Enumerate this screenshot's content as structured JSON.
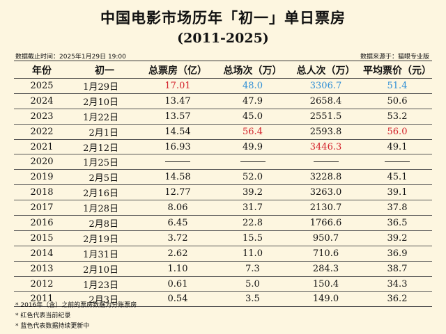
{
  "title": "中国电影市场历年「初一」单日票房",
  "subtitle": "(2011-2025)",
  "meta": {
    "cutoff": "数据截止时间：2025年1月29日 19:00",
    "source": "数据来源于：猫眼专业版"
  },
  "headers": [
    "年份",
    "初一",
    "总票房（亿）",
    "总场次（万）",
    "总人次（万）",
    "平均票价（元）"
  ],
  "rows": [
    {
      "year": "2025",
      "day": "1月29日",
      "box": "17.01",
      "shows": "48.0",
      "people": "3306.7",
      "price": "51.4"
    },
    {
      "year": "2024",
      "day": "2月10日",
      "box": "13.47",
      "shows": "47.9",
      "people": "2658.4",
      "price": "50.6"
    },
    {
      "year": "2023",
      "day": "1月22日",
      "box": "13.57",
      "shows": "45.0",
      "people": "2551.5",
      "price": "53.2"
    },
    {
      "year": "2022",
      "day": "2月1日",
      "box": "14.54",
      "shows": "56.4",
      "people": "2593.8",
      "price": "56.0"
    },
    {
      "year": "2021",
      "day": "2月12日",
      "box": "16.93",
      "shows": "49.9",
      "people": "3446.3",
      "price": "49.1"
    },
    {
      "year": "2020",
      "day": "1月25日",
      "box": "",
      "shows": "",
      "people": "",
      "price": ""
    },
    {
      "year": "2019",
      "day": "2月5日",
      "box": "14.58",
      "shows": "52.0",
      "people": "3228.8",
      "price": "45.1"
    },
    {
      "year": "2018",
      "day": "2月16日",
      "box": "12.77",
      "shows": "39.2",
      "people": "3263.0",
      "price": "39.1"
    },
    {
      "year": "2017",
      "day": "1月28日",
      "box": "8.06",
      "shows": "31.7",
      "people": "2130.7",
      "price": "37.8"
    },
    {
      "year": "2016",
      "day": "2月8日",
      "box": "6.45",
      "shows": "22.8",
      "people": "1766.6",
      "price": "36.5"
    },
    {
      "year": "2015",
      "day": "2月19日",
      "box": "3.72",
      "shows": "15.5",
      "people": "950.7",
      "price": "39.2"
    },
    {
      "year": "2014",
      "day": "1月31日",
      "box": "2.62",
      "shows": "11.0",
      "people": "710.6",
      "price": "36.9"
    },
    {
      "year": "2013",
      "day": "2月10日",
      "box": "1.10",
      "shows": "7.3",
      "people": "284.3",
      "price": "38.7"
    },
    {
      "year": "2012",
      "day": "1月23日",
      "box": "0.61",
      "shows": "5.0",
      "people": "150.4",
      "price": "34.3"
    },
    {
      "year": "2011",
      "day": "2月3日",
      "box": "0.54",
      "shows": "3.5",
      "people": "149.0",
      "price": "36.2"
    }
  ],
  "highlights": [
    {
      "row": 0,
      "col": "box",
      "color": "#d3202a"
    },
    {
      "row": 0,
      "col": "shows",
      "color": "#2f8fd6"
    },
    {
      "row": 0,
      "col": "people",
      "color": "#2f8fd6"
    },
    {
      "row": 0,
      "col": "price",
      "color": "#2f8fd6"
    },
    {
      "row": 3,
      "col": "shows",
      "color": "#d3202a"
    },
    {
      "row": 3,
      "col": "price",
      "color": "#d3202a"
    },
    {
      "row": 4,
      "col": "people",
      "color": "#d3202a"
    }
  ],
  "notes": [
    "* 2016年（含）之前的票房数据为分账票房",
    "* 红色代表当前纪录",
    "* 蓝色代表数据持续更新中"
  ]
}
